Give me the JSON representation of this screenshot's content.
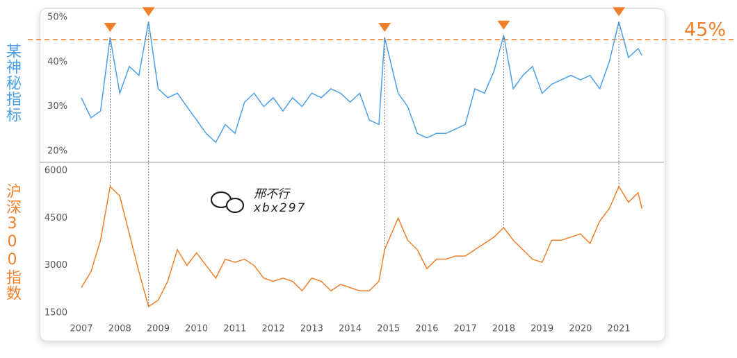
{
  "chart_data": [
    {
      "type": "line",
      "axis_title": "某神秘指标",
      "x": [
        2007,
        2007.25,
        2007.5,
        2007.75,
        2008,
        2008.25,
        2008.5,
        2008.75,
        2009,
        2009.25,
        2009.5,
        2009.75,
        2010,
        2010.25,
        2010.5,
        2010.75,
        2011,
        2011.25,
        2011.5,
        2011.75,
        2012,
        2012.25,
        2012.5,
        2012.75,
        2013,
        2013.25,
        2013.5,
        2013.75,
        2014,
        2014.25,
        2014.5,
        2014.75,
        2014.9,
        2015.25,
        2015.5,
        2015.75,
        2016,
        2016.25,
        2016.5,
        2016.75,
        2017,
        2017.25,
        2017.5,
        2017.75,
        2018,
        2018.25,
        2018.5,
        2018.75,
        2019,
        2019.25,
        2019.5,
        2019.75,
        2020,
        2020.25,
        2020.5,
        2020.75,
        2021,
        2021.25,
        2021.5,
        2021.6
      ],
      "series": [
        {
          "name": "某神秘指标",
          "color": "#4a9fe8",
          "values": [
            32,
            27.5,
            29,
            45.5,
            33,
            39,
            37,
            49,
            34,
            32,
            33,
            30,
            27,
            24,
            22,
            26,
            24,
            31,
            33,
            30,
            32,
            29,
            32,
            30,
            33,
            32,
            34,
            33,
            31,
            33,
            27,
            26,
            45.5,
            33,
            30,
            24,
            23,
            24,
            24,
            25,
            26,
            34,
            33,
            38,
            46,
            34,
            37,
            39,
            33,
            35,
            36,
            37,
            36,
            37,
            34,
            40,
            49,
            41,
            43,
            41.5
          ]
        }
      ],
      "xlim": [
        2007,
        2021.65
      ],
      "ylim": [
        20,
        50
      ],
      "yticks": [
        {
          "value": 20,
          "label": "20%"
        },
        {
          "value": 30,
          "label": "30%"
        },
        {
          "value": 40,
          "label": "40%"
        },
        {
          "value": 50,
          "label": "50%"
        }
      ],
      "reference_line": {
        "value": 45,
        "label": "45%",
        "color": "#f07f2a"
      }
    },
    {
      "type": "line",
      "axis_title": "沪深300指数",
      "x": [
        2007,
        2007.25,
        2007.5,
        2007.75,
        2008,
        2008.25,
        2008.5,
        2008.75,
        2009,
        2009.25,
        2009.5,
        2009.75,
        2010,
        2010.25,
        2010.5,
        2010.75,
        2011,
        2011.25,
        2011.5,
        2011.75,
        2012,
        2012.25,
        2012.5,
        2012.75,
        2013,
        2013.25,
        2013.5,
        2013.75,
        2014,
        2014.25,
        2014.5,
        2014.75,
        2014.9,
        2015.25,
        2015.5,
        2015.75,
        2016,
        2016.25,
        2016.5,
        2016.75,
        2017,
        2017.25,
        2017.5,
        2017.75,
        2018,
        2018.25,
        2018.5,
        2018.75,
        2019,
        2019.25,
        2019.5,
        2019.75,
        2020,
        2020.25,
        2020.5,
        2020.75,
        2021,
        2021.25,
        2021.5,
        2021.6
      ],
      "series": [
        {
          "name": "沪深300指数",
          "color": "#f07f2a",
          "values": [
            2300,
            2800,
            3800,
            5500,
            5200,
            4000,
            2800,
            1700,
            1900,
            2500,
            3500,
            3000,
            3400,
            3000,
            2600,
            3200,
            3100,
            3200,
            3000,
            2600,
            2500,
            2600,
            2500,
            2200,
            2600,
            2500,
            2200,
            2400,
            2300,
            2200,
            2200,
            2500,
            3500,
            4500,
            3800,
            3500,
            2900,
            3200,
            3200,
            3300,
            3300,
            3500,
            3700,
            3900,
            4200,
            3800,
            3500,
            3200,
            3100,
            3800,
            3800,
            3900,
            4000,
            3700,
            4400,
            4800,
            5500,
            5000,
            5300,
            4800
          ]
        }
      ],
      "xlim": [
        2007,
        2021.65
      ],
      "ylim": [
        1500,
        6000
      ],
      "yticks": [
        1500,
        3000,
        4500,
        6000
      ],
      "xticks": [
        2007,
        2008,
        2009,
        2010,
        2011,
        2012,
        2013,
        2014,
        2015,
        2016,
        2017,
        2018,
        2019,
        2020,
        2021
      ]
    }
  ],
  "watermark": [
    "邢不行",
    "xbx297"
  ]
}
